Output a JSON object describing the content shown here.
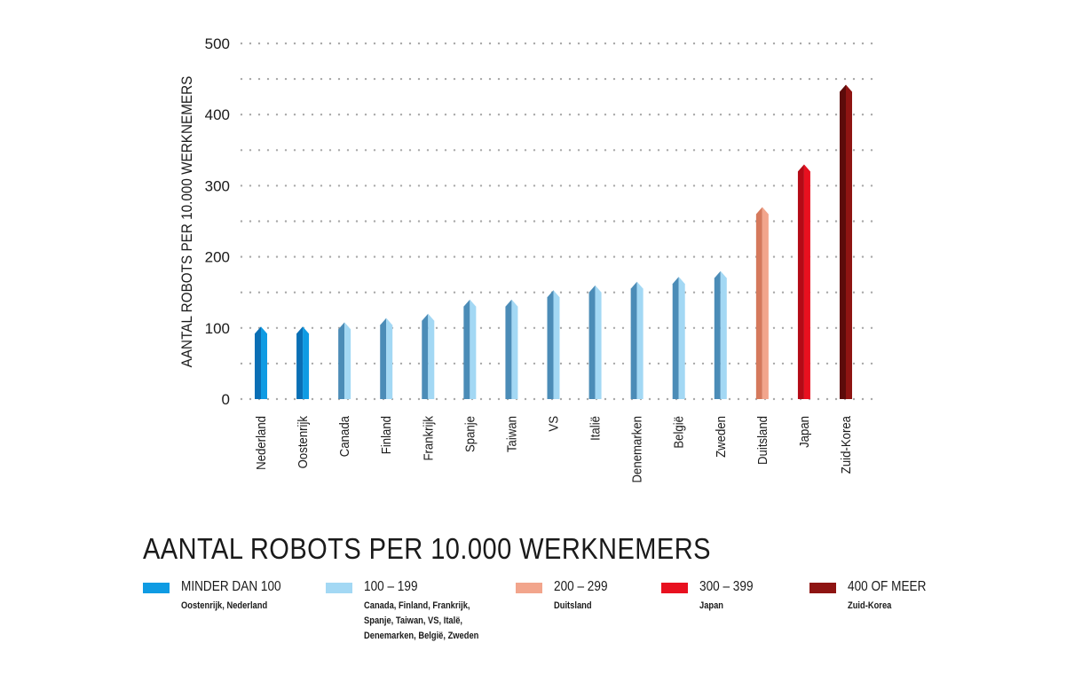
{
  "chart_data": {
    "type": "bar",
    "title": "AANTAL ROBOTS PER 10.000 WERKNEMERS",
    "ylabel": "AANTAL ROBOTS PER 10.000 WERKNEMERS",
    "xlabel": "",
    "ylim": [
      0,
      500
    ],
    "yticks": [
      "0",
      "100",
      "200",
      "300",
      "400",
      "500"
    ],
    "grid": true,
    "categories": [
      "Nederland",
      "Oostenrijk",
      "Canada",
      "Finland",
      "Frankrijk",
      "Spanje",
      "Taiwan",
      "VS",
      "Italië",
      "Denemarken",
      "België",
      "Zweden",
      "Duitsland",
      "Japan",
      "Zuid-Korea"
    ],
    "values": [
      97,
      97,
      103,
      109,
      115,
      135,
      135,
      148,
      155,
      160,
      167,
      175,
      265,
      325,
      437
    ],
    "bar_groups": [
      0,
      0,
      1,
      1,
      1,
      1,
      1,
      1,
      1,
      1,
      1,
      1,
      2,
      3,
      4
    ]
  },
  "legend": {
    "items": [
      {
        "label": "MINDER DAN 100",
        "members": "Oostenrijk, Nederland",
        "color": "#0f9be3",
        "dark": "#0a6fb5"
      },
      {
        "label": "100 – 199",
        "members": "Canada, Finland, Frankrijk, Spanje, Taiwan, VS, Italë, Denemarken, België, Zweden",
        "color": "#a3d8f4",
        "dark": "#4b8cb7"
      },
      {
        "label": "200 – 299",
        "members": "Duitsland",
        "color": "#f2a58c",
        "dark": "#d5795c"
      },
      {
        "label": "300 – 399",
        "members": "Japan",
        "color": "#e8101f",
        "dark": "#b40a16"
      },
      {
        "label": "400 OF MEER",
        "members": "Zuid-Korea",
        "color": "#8e1412",
        "dark": "#5c0b0a"
      }
    ]
  }
}
